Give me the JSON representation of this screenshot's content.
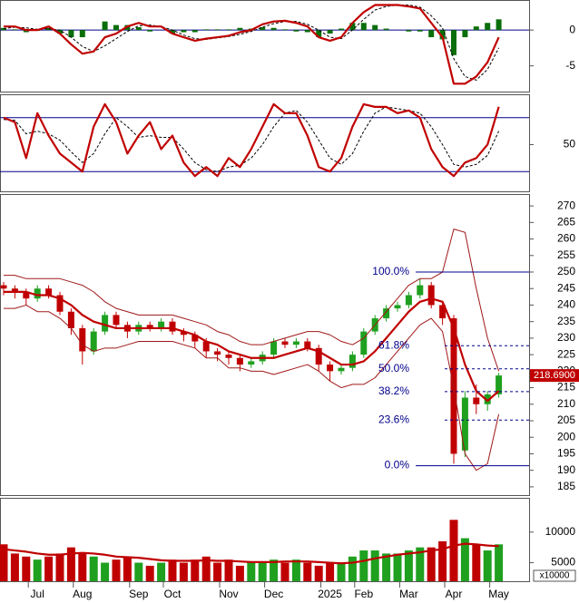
{
  "chart_data": [
    {
      "type": "macd",
      "ylim": [
        -8.6,
        4.2
      ],
      "yticks": [
        0,
        -5
      ],
      "series": [
        {
          "style": "bar",
          "color": "#0a6e0a",
          "values": [
            0.3,
            0.1,
            -0.3,
            -0.1,
            0.3,
            -0.5,
            -1,
            -1,
            0,
            1.2,
            0.7,
            0.7,
            0.4,
            -0.2,
            0,
            -0.5,
            -0.3,
            -0.3,
            0.1,
            0.1,
            0.1,
            0.3,
            0.2,
            0.4,
            0.3,
            0.1,
            -0.2,
            -0.3,
            -1,
            -0.5,
            0.2,
            1,
            1,
            0.7,
            0.2,
            0,
            -0.2,
            -0.2,
            -1,
            -1.3,
            -3.5,
            -1,
            0.5,
            1,
            1.5
          ]
        },
        {
          "style": "dashed",
          "color": "#000000",
          "values": [
            0.2,
            0.4,
            0.3,
            0.1,
            0.2,
            0,
            -1,
            -2.3,
            -3,
            -2.2,
            -1.2,
            -0.2,
            0.6,
            0.7,
            0.5,
            0,
            -0.7,
            -1.2,
            -1.3,
            -1.1,
            -0.9,
            -0.6,
            -0.2,
            0.4,
            0.9,
            1.2,
            1.2,
            0.8,
            0,
            -1,
            -1.2,
            0,
            1.5,
            2.8,
            3.3,
            3.5,
            3.5,
            3.2,
            2,
            0.3,
            -4,
            -6.5,
            -7,
            -5.5,
            -2.5
          ]
        },
        {
          "style": "line",
          "color": "#c00000",
          "values": [
            0.5,
            0.5,
            0,
            0,
            0.5,
            -0.5,
            -2,
            -3.3,
            -3,
            -1,
            -0.5,
            0.5,
            1,
            0.5,
            0.5,
            -0.5,
            -1,
            -1.5,
            -1.2,
            -1,
            -0.8,
            -0.3,
            0,
            0.8,
            1.2,
            1.3,
            1,
            0.5,
            -1,
            -1.5,
            -1,
            1,
            2.5,
            3.5,
            3.5,
            3.5,
            3.3,
            3,
            1,
            -1,
            -7.5,
            -7.5,
            -6.5,
            -4.5,
            -1
          ]
        }
      ]
    },
    {
      "type": "line",
      "ylim": [
        -2,
        106
      ],
      "yticks": [
        50
      ],
      "levels": [
        20,
        80
      ],
      "level_color": "#00008b",
      "series": [
        {
          "style": "dashed",
          "color": "#000000",
          "values": [
            78,
            77,
            62,
            65,
            62,
            55,
            42,
            30,
            40,
            62,
            80,
            70,
            58,
            60,
            58,
            58,
            45,
            30,
            22,
            20,
            25,
            27,
            35,
            50,
            70,
            85,
            88,
            75,
            55,
            35,
            28,
            40,
            65,
            85,
            92,
            90,
            88,
            85,
            70,
            50,
            28,
            25,
            28,
            38,
            65
          ]
        },
        {
          "style": "line",
          "color": "#c00000",
          "values": [
            80,
            75,
            35,
            85,
            60,
            40,
            30,
            20,
            70,
            95,
            75,
            40,
            60,
            75,
            45,
            60,
            30,
            15,
            25,
            15,
            35,
            25,
            45,
            70,
            95,
            85,
            85,
            60,
            25,
            20,
            35,
            70,
            95,
            92,
            92,
            85,
            88,
            80,
            45,
            25,
            15,
            30,
            35,
            50,
            92
          ]
        }
      ]
    },
    {
      "type": "candlestick",
      "ylim": [
        182.5,
        273.6
      ],
      "yticks": [
        185,
        190,
        195,
        200,
        205,
        210,
        215,
        220,
        225,
        230,
        235,
        240,
        245,
        250,
        255,
        260,
        265,
        270
      ],
      "up_color": "#1fa01f",
      "down_color": "#c00000",
      "open": [
        246,
        245,
        244,
        242,
        245,
        243,
        238,
        233,
        226,
        232,
        237,
        234,
        232,
        234,
        233,
        235,
        232,
        231,
        229,
        226,
        225,
        224,
        222,
        223,
        225,
        229,
        228,
        229,
        227,
        222,
        220,
        221,
        225,
        232,
        236,
        239,
        240,
        243,
        246,
        240,
        236,
        196,
        212,
        210,
        213
      ],
      "high": [
        247,
        246,
        245,
        246,
        246,
        244,
        239,
        234,
        233,
        238,
        238,
        235,
        235,
        235,
        236,
        236,
        233,
        232,
        230,
        227,
        226,
        225,
        224,
        226,
        230,
        230,
        230,
        230,
        228,
        223,
        222,
        226,
        233,
        237,
        240,
        241,
        244,
        248,
        247,
        241,
        237,
        214,
        216,
        214,
        219.5
      ],
      "low": [
        243,
        242,
        240,
        241,
        242,
        237,
        231,
        222,
        225,
        231,
        233,
        230,
        231,
        232,
        232,
        231,
        229,
        227,
        224,
        223,
        222,
        220,
        221,
        222,
        224,
        227,
        227,
        226,
        220,
        217,
        219,
        220,
        224,
        231,
        235,
        238,
        239,
        242,
        239,
        234,
        192,
        194,
        207,
        208,
        212
      ],
      "close": [
        245,
        244,
        242,
        245,
        243,
        238,
        233,
        226,
        232,
        237,
        234,
        232,
        234,
        233,
        235,
        232,
        231,
        229,
        226,
        225,
        224,
        222,
        223,
        225,
        229,
        228,
        229,
        227,
        222,
        220,
        221,
        225,
        232,
        236,
        239,
        240,
        243,
        246,
        240,
        236,
        195,
        212,
        210,
        213,
        218.69
      ],
      "series": [
        {
          "style": "thin",
          "color": "#a01818",
          "values": [
            249,
            249,
            248,
            248,
            248,
            248,
            247,
            246,
            244,
            241,
            239,
            238,
            237,
            237,
            237,
            237,
            236,
            235,
            234,
            232,
            231,
            229,
            228,
            228,
            229,
            230,
            231,
            232,
            232,
            231,
            229,
            228,
            230,
            234,
            238,
            242,
            246,
            248,
            248,
            250,
            263,
            262,
            245,
            230,
            220
          ]
        },
        {
          "style": "thin",
          "color": "#a01818",
          "values": [
            239,
            239,
            240,
            238,
            238,
            236,
            233,
            228,
            226,
            227,
            227,
            228,
            229,
            229,
            229,
            229,
            228,
            227,
            224,
            224,
            221,
            221,
            220,
            220,
            219,
            220,
            221,
            222,
            220,
            217,
            215,
            216,
            216,
            218,
            222,
            226,
            230,
            234,
            236,
            232,
            215,
            195,
            190,
            192,
            207
          ]
        },
        {
          "style": "line",
          "color": "#c00000",
          "values": [
            244,
            244,
            244,
            243,
            243,
            242,
            240,
            237,
            235,
            234,
            233,
            233,
            233,
            233,
            233,
            233,
            232,
            231,
            229,
            228,
            226,
            225,
            224,
            224,
            224,
            225,
            226,
            227,
            226,
            224,
            222,
            222,
            223,
            226,
            230,
            234,
            238,
            241,
            242,
            241,
            233,
            222,
            214,
            211,
            214
          ]
        }
      ],
      "fib": {
        "color": "#00008b",
        "levels": [
          {
            "label": "100.0%",
            "price": 250
          },
          {
            "label": "61.8%",
            "price": 227.7
          },
          {
            "label": "50.0%",
            "price": 220.7
          },
          {
            "label": "38.2%",
            "price": 213.8
          },
          {
            "label": "23.6%",
            "price": 205.2
          },
          {
            "label": "0.0%",
            "price": 191.4
          }
        ]
      },
      "last_price": {
        "value": 218.69,
        "label": "218.6900"
      },
      "last_color": "#c00000"
    },
    {
      "type": "bar",
      "ylim": [
        1970,
        15600
      ],
      "yticks": [
        5000,
        10000
      ],
      "unit_label": "x10000",
      "categories": [
        null,
        null,
        null,
        "Jul",
        null,
        null,
        null,
        "Aug",
        null,
        null,
        null,
        null,
        "Sep",
        null,
        null,
        "Oct",
        null,
        null,
        null,
        null,
        "Nov",
        null,
        null,
        null,
        "Dec",
        null,
        null,
        null,
        null,
        "2025",
        null,
        null,
        "Feb",
        null,
        null,
        null,
        "Mar",
        null,
        null,
        null,
        "Apr",
        null,
        null,
        null,
        "May"
      ],
      "series": [
        {
          "style": "bar",
          "up_color": "#1fa01f",
          "down_color": "#c00000",
          "values": [
            8000,
            6500,
            6000,
            5500,
            6000,
            6500,
            7500,
            6500,
            6000,
            5000,
            5500,
            6000,
            5000,
            4500,
            5000,
            5500,
            5000,
            5500,
            6000,
            5000,
            5500,
            4500,
            5000,
            5000,
            5500,
            5000,
            5500,
            5000,
            4500,
            5000,
            5000,
            6000,
            7000,
            7000,
            6500,
            6500,
            7000,
            7500,
            7500,
            8500,
            12000,
            9000,
            8000,
            7000,
            8000
          ]
        },
        {
          "style": "line",
          "color": "#c00000",
          "values": [
            7200,
            7000,
            6800,
            6500,
            6300,
            6300,
            6500,
            6600,
            6500,
            6300,
            6000,
            5900,
            5800,
            5600,
            5400,
            5300,
            5300,
            5300,
            5400,
            5300,
            5300,
            5200,
            5100,
            5100,
            5100,
            5200,
            5200,
            5200,
            5100,
            5000,
            4900,
            5000,
            5300,
            5700,
            6000,
            6300,
            6500,
            6700,
            7000,
            7200,
            7800,
            8100,
            8000,
            7800,
            7700
          ]
        }
      ]
    }
  ]
}
